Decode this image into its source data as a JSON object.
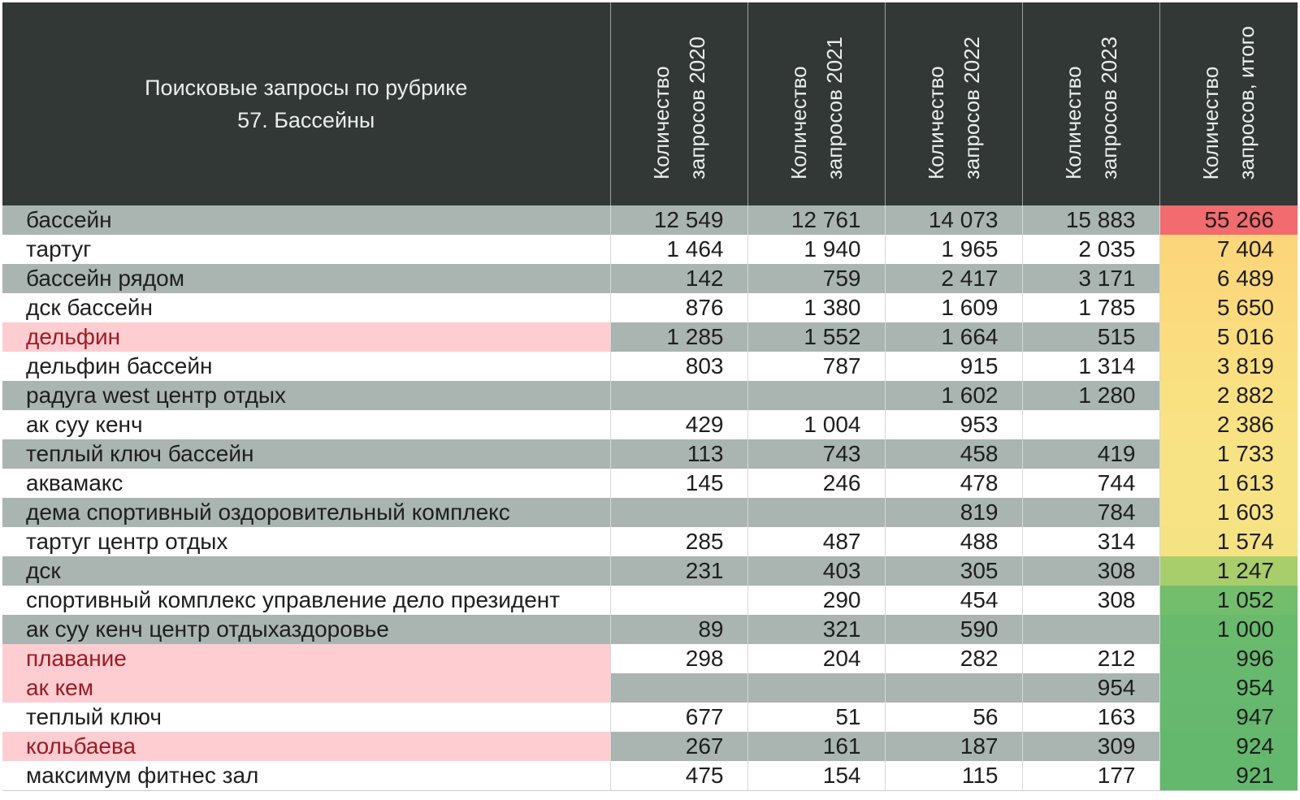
{
  "header": {
    "title_line1": "Поисковые запросы по рубрике",
    "title_line2": "57. Бассейны",
    "columns": [
      {
        "line1": "Количество",
        "line2": "запросов 2020"
      },
      {
        "line1": "Количество",
        "line2": "запросов 2021"
      },
      {
        "line1": "Количество",
        "line2": "запросов 2022"
      },
      {
        "line1": "Количество",
        "line2": "запросов 2023"
      },
      {
        "line1": "Количество",
        "line2": "запросов, итого"
      }
    ]
  },
  "colors": {
    "header_bg": "#323836",
    "row_shade": "#aab4b0",
    "highlight_name_bg": "#fdcdd2",
    "highlight_name_text": "#9b1c24",
    "total_scale": [
      "#f26b6e",
      "#fbd97c",
      "#f9e282",
      "#a6cc6a",
      "#63b86e"
    ]
  },
  "rows": [
    {
      "name": "бассейн",
      "v2020": "12 549",
      "v2021": "12 761",
      "v2022": "14 073",
      "v2023": "15 883",
      "total": "55 266",
      "shade": true,
      "highlight": false,
      "total_color": "#f26b6e"
    },
    {
      "name": "тартуг",
      "v2020": "1 464",
      "v2021": "1 940",
      "v2022": "1 965",
      "v2023": "2 035",
      "total": "7 404",
      "shade": false,
      "highlight": false,
      "total_color": "#fbd67a"
    },
    {
      "name": "бассейн рядом",
      "v2020": "142",
      "v2021": "759",
      "v2022": "2 417",
      "v2023": "3 171",
      "total": "6 489",
      "shade": true,
      "highlight": false,
      "total_color": "#fbd87c"
    },
    {
      "name": "дск бассейн",
      "v2020": "876",
      "v2021": "1 380",
      "v2022": "1 609",
      "v2023": "1 785",
      "total": "5 650",
      "shade": false,
      "highlight": false,
      "total_color": "#fbda7d"
    },
    {
      "name": "дельфин",
      "v2020": "1 285",
      "v2021": "1 552",
      "v2022": "1 664",
      "v2023": "515",
      "total": "5 016",
      "shade": true,
      "highlight": true,
      "total_color": "#fbdc7e"
    },
    {
      "name": "дельфин бассейн",
      "v2020": "803",
      "v2021": "787",
      "v2022": "915",
      "v2023": "1 314",
      "total": "3 819",
      "shade": false,
      "highlight": false,
      "total_color": "#fadf80"
    },
    {
      "name": "радуга west центр отдых",
      "v2020": "",
      "v2021": "",
      "v2022": "1 602",
      "v2023": "1 280",
      "total": "2 882",
      "shade": true,
      "highlight": false,
      "total_color": "#f9e182"
    },
    {
      "name": "ак суу кенч",
      "v2020": "429",
      "v2021": "1 004",
      "v2022": "953",
      "v2023": "",
      "total": "2 386",
      "shade": false,
      "highlight": false,
      "total_color": "#f9e283"
    },
    {
      "name": "теплый ключ бассейн",
      "v2020": "113",
      "v2021": "743",
      "v2022": "458",
      "v2023": "419",
      "total": "1 733",
      "shade": true,
      "highlight": false,
      "total_color": "#f8e384"
    },
    {
      "name": "аквамакс",
      "v2020": "145",
      "v2021": "246",
      "v2022": "478",
      "v2023": "744",
      "total": "1 613",
      "shade": false,
      "highlight": false,
      "total_color": "#f8e384"
    },
    {
      "name": "дема спортивный оздоровительный комплекс",
      "v2020": "",
      "v2021": "",
      "v2022": "819",
      "v2023": "784",
      "total": "1 603",
      "shade": true,
      "highlight": false,
      "total_color": "#f8e384"
    },
    {
      "name": "тартуг центр отдых",
      "v2020": "285",
      "v2021": "487",
      "v2022": "488",
      "v2023": "314",
      "total": "1 574",
      "shade": false,
      "highlight": false,
      "total_color": "#f5e283"
    },
    {
      "name": "дск",
      "v2020": "231",
      "v2021": "403",
      "v2022": "305",
      "v2023": "308",
      "total": "1 247",
      "shade": true,
      "highlight": false,
      "total_color": "#a8cd6b"
    },
    {
      "name": "спортивный комплекс управление дело президент",
      "v2020": "",
      "v2021": "290",
      "v2022": "454",
      "v2023": "308",
      "total": "1 052",
      "shade": false,
      "highlight": false,
      "total_color": "#72be6d"
    },
    {
      "name": "ак суу кенч центр отдыхаздоровье",
      "v2020": "89",
      "v2021": "321",
      "v2022": "590",
      "v2023": "",
      "total": "1 000",
      "shade": true,
      "highlight": false,
      "total_color": "#6aba6d"
    },
    {
      "name": "плавание",
      "v2020": "298",
      "v2021": "204",
      "v2022": "282",
      "v2023": "212",
      "total": "996",
      "shade": false,
      "highlight": true,
      "total_color": "#68b96d"
    },
    {
      "name": "ак кем",
      "v2020": "",
      "v2021": "",
      "v2022": "",
      "v2023": "954",
      "total": "954",
      "shade": true,
      "highlight": true,
      "total_color": "#66b96e"
    },
    {
      "name": "теплый ключ",
      "v2020": "677",
      "v2021": "51",
      "v2022": "56",
      "v2023": "163",
      "total": "947",
      "shade": false,
      "highlight": false,
      "total_color": "#65b86e"
    },
    {
      "name": "кольбаева",
      "v2020": "267",
      "v2021": "161",
      "v2022": "187",
      "v2023": "309",
      "total": "924",
      "shade": true,
      "highlight": true,
      "total_color": "#64b86e"
    },
    {
      "name": "максимум фитнес зал",
      "v2020": "475",
      "v2021": "154",
      "v2022": "115",
      "v2023": "177",
      "total": "921",
      "shade": false,
      "highlight": false,
      "total_color": "#63b86e"
    }
  ]
}
